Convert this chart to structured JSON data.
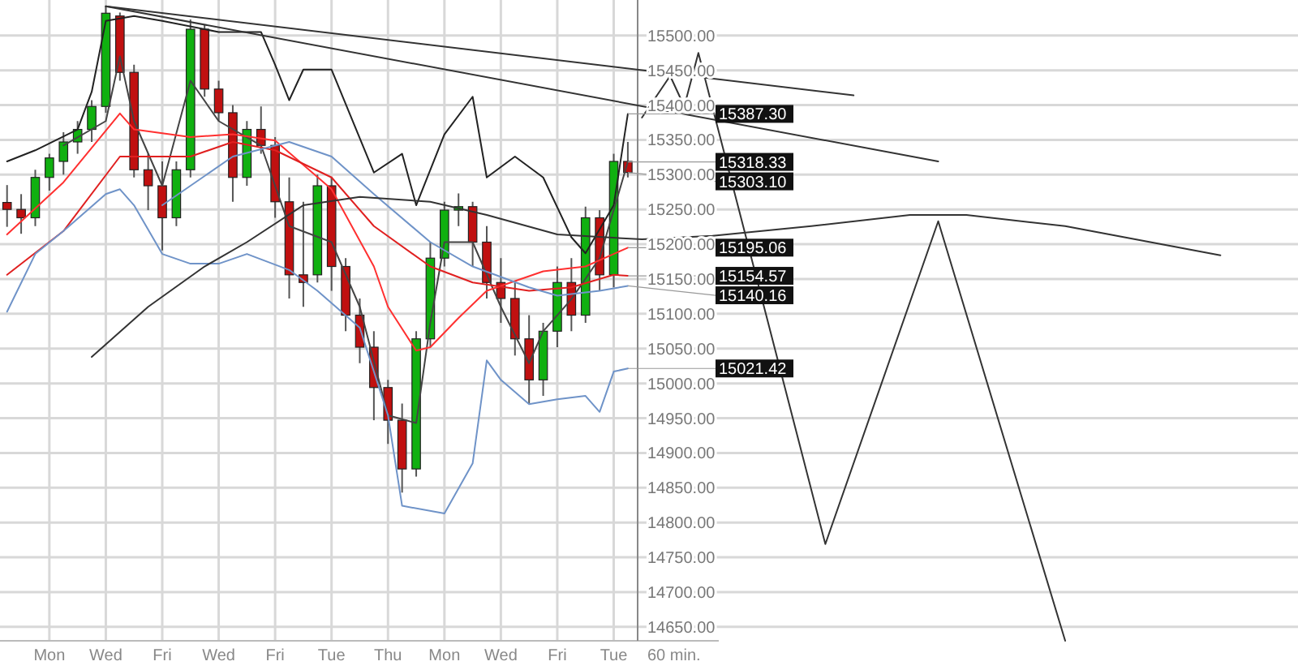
{
  "chart_data": {
    "type": "candlestick",
    "categories": [
      null,
      null,
      null,
      "Mon",
      null,
      null,
      null,
      "Wed",
      null,
      null,
      null,
      "Fri",
      null,
      null,
      null,
      "Wed",
      null,
      null,
      null,
      "Fri",
      null,
      null,
      null,
      "Tue",
      null,
      null,
      null,
      "Thu",
      null,
      null,
      null,
      "Mon",
      null,
      null,
      null,
      "Wed",
      null,
      null,
      null,
      "Fri",
      null,
      null,
      null,
      "Tue",
      null,
      null,
      null,
      null,
      null,
      null,
      null,
      null,
      null,
      null,
      null,
      null,
      null,
      null,
      null,
      null,
      null,
      null,
      null,
      null,
      null,
      null,
      null,
      null,
      null,
      null,
      null,
      null,
      null,
      null,
      null,
      null,
      null,
      null,
      null,
      null,
      null,
      null,
      null,
      null,
      null,
      null,
      null,
      null,
      null,
      null,
      null,
      null
    ],
    "ohlc": [
      [
        15260,
        15285,
        15225,
        15250
      ],
      [
        15250,
        15272,
        15215,
        15238
      ],
      [
        15238,
        15307,
        15226,
        15296
      ],
      [
        15296,
        15330,
        15277,
        15324
      ],
      [
        15319,
        15361,
        15300,
        15347
      ],
      [
        15347,
        15377,
        15330,
        15365
      ],
      [
        15365,
        15407,
        15347,
        15398
      ],
      [
        15398,
        15542,
        15389,
        15532
      ],
      [
        15528,
        15533,
        15435,
        15447
      ],
      [
        15447,
        15458,
        15296,
        15307
      ],
      [
        15307,
        15330,
        15249,
        15284
      ],
      [
        15284,
        15319,
        15191,
        15238
      ],
      [
        15238,
        15319,
        15226,
        15307
      ],
      [
        15307,
        15523,
        15296,
        15509
      ],
      [
        15509,
        15516,
        15412,
        15423
      ],
      [
        15423,
        15435,
        15377,
        15389
      ],
      [
        15389,
        15400,
        15261,
        15296
      ],
      [
        15296,
        15377,
        15284,
        15365
      ],
      [
        15365,
        15398,
        15330,
        15342
      ],
      [
        15342,
        15354,
        15238,
        15261
      ],
      [
        15261,
        15296,
        15122,
        15156
      ],
      [
        15156,
        15261,
        15110,
        15145
      ],
      [
        15156,
        15300,
        15145,
        15284
      ],
      [
        15284,
        15296,
        15133,
        15168
      ],
      [
        15168,
        15180,
        15075,
        15098
      ],
      [
        15098,
        15122,
        15029,
        15052
      ],
      [
        15052,
        15075,
        14947,
        14994
      ],
      [
        14994,
        15005,
        14913,
        14947
      ],
      [
        14947,
        14971,
        14843,
        14877
      ],
      [
        14877,
        15075,
        14866,
        15064
      ],
      [
        15064,
        15203,
        15052,
        15180
      ],
      [
        15180,
        15261,
        15168,
        15249
      ],
      [
        15249,
        15273,
        15226,
        15254
      ],
      [
        15254,
        15261,
        15168,
        15203
      ],
      [
        15203,
        15226,
        15122,
        15145
      ],
      [
        15145,
        15180,
        15087,
        15122
      ],
      [
        15122,
        15145,
        15040,
        15064
      ],
      [
        15064,
        15098,
        14971,
        15005
      ],
      [
        15005,
        15087,
        14982,
        15075
      ],
      [
        15075,
        15168,
        15052,
        15145
      ],
      [
        15145,
        15180,
        15075,
        15098
      ],
      [
        15098,
        15254,
        15087,
        15238
      ],
      [
        15238,
        15249,
        15133,
        15156
      ],
      [
        15156,
        15330,
        15138,
        15319
      ],
      [
        15319,
        15347,
        15296,
        15303.1
      ],
      null,
      null,
      null,
      null,
      null,
      null,
      null,
      null,
      null,
      null,
      null,
      null,
      null,
      null,
      null,
      null,
      null,
      null,
      null,
      null,
      null,
      null,
      null,
      null,
      null,
      null,
      null,
      null,
      null,
      null,
      null,
      null,
      null,
      null,
      null,
      null,
      null,
      null,
      null,
      null,
      null,
      null,
      null,
      null,
      null,
      null,
      null
    ],
    "value_labels": [
      null,
      null,
      null,
      null,
      null,
      null,
      null,
      null,
      null,
      null,
      null,
      null,
      null,
      null,
      null,
      null,
      null,
      null,
      null,
      null,
      null,
      null,
      null,
      null,
      null,
      null,
      null,
      null,
      null,
      null,
      null,
      null,
      null,
      null,
      null,
      null,
      null,
      null,
      null,
      null,
      null,
      null,
      null,
      null,
      "15303.10",
      null,
      null,
      null,
      null,
      null,
      null,
      null,
      null,
      null,
      null,
      null,
      null,
      null,
      null,
      null,
      null,
      null,
      null,
      null,
      null,
      null,
      null,
      null,
      null,
      null,
      null,
      null,
      null,
      null,
      null,
      null,
      null,
      null,
      null,
      null,
      null,
      null,
      null,
      null,
      null,
      null,
      null,
      null,
      null,
      null,
      null,
      null
    ],
    "series": [
      {
        "type": "line",
        "color": "#222222",
        "values": [
          15319,
          null,
          15335,
          null,
          null,
          15365,
          15419,
          15521,
          null,
          15528,
          null,
          15521,
          null,
          null,
          null,
          15505,
          null,
          null,
          15505,
          15458,
          15407,
          15451,
          null,
          15451,
          null,
          null,
          15303,
          null,
          15330,
          15256,
          null,
          15358,
          null,
          15412,
          15296,
          null,
          15326,
          null,
          15296,
          null,
          15210,
          15187,
          null,
          15256,
          15387.3,
          null,
          null,
          null,
          null,
          null,
          null,
          null,
          null,
          null,
          null,
          null,
          null,
          null,
          null,
          null,
          null,
          null,
          null,
          null,
          null,
          null,
          null,
          null,
          null,
          null,
          null,
          null,
          null,
          null,
          null,
          null,
          null,
          null,
          null,
          null,
          null,
          null,
          null,
          null,
          null,
          null,
          null,
          null,
          null,
          null,
          null,
          null
        ],
        "value_labels": [
          null,
          null,
          null,
          null,
          null,
          null,
          null,
          null,
          null,
          null,
          null,
          null,
          null,
          null,
          null,
          null,
          null,
          null,
          null,
          null,
          null,
          null,
          null,
          null,
          null,
          null,
          null,
          null,
          null,
          null,
          null,
          null,
          null,
          null,
          null,
          null,
          null,
          null,
          null,
          null,
          null,
          null,
          null,
          null,
          "15387.30",
          null,
          null,
          null,
          null,
          null,
          null,
          null,
          null,
          null,
          null,
          null,
          null,
          null,
          null,
          null,
          null,
          null,
          null,
          null,
          null,
          null,
          null,
          null,
          null,
          null,
          null,
          null,
          null,
          null,
          null,
          null,
          null,
          null,
          null,
          null,
          null,
          null,
          null,
          null,
          null,
          null,
          null,
          null,
          null,
          null,
          null,
          null
        ]
      },
      {
        "type": "line",
        "color": "#444444",
        "values": [
          null,
          null,
          null,
          null,
          15342,
          null,
          null,
          15377,
          15470,
          15377,
          null,
          15284,
          null,
          15435,
          null,
          15377,
          null,
          null,
          15342,
          null,
          15226,
          null,
          null,
          15203,
          null,
          15110,
          null,
          14954,
          null,
          14943,
          15087,
          15203,
          null,
          15203,
          null,
          15110,
          null,
          15029,
          15075,
          null,
          15121,
          null,
          15180,
          null,
          15318.33,
          null,
          null,
          null,
          null,
          null,
          null,
          null,
          null,
          null,
          null,
          null,
          null,
          null,
          null,
          null,
          null,
          null,
          null,
          null,
          null,
          null,
          null,
          null,
          null,
          null,
          null,
          null,
          null,
          null,
          null,
          null,
          null,
          null,
          null,
          null,
          null,
          null,
          null,
          null,
          null,
          null,
          null,
          null,
          null,
          null,
          null,
          null
        ],
        "value_labels": [
          null,
          null,
          null,
          null,
          null,
          null,
          null,
          null,
          null,
          null,
          null,
          null,
          null,
          null,
          null,
          null,
          null,
          null,
          null,
          null,
          null,
          null,
          null,
          null,
          null,
          null,
          null,
          null,
          null,
          null,
          null,
          null,
          null,
          null,
          null,
          null,
          null,
          null,
          null,
          null,
          null,
          null,
          null,
          null,
          "15318.33",
          null,
          null,
          null,
          null,
          null,
          null,
          null,
          null,
          null,
          null,
          null,
          null,
          null,
          null,
          null,
          null,
          null,
          null,
          null,
          null,
          null,
          null,
          null,
          null,
          null,
          null,
          null,
          null,
          null,
          null,
          null,
          null,
          null,
          null,
          null,
          null,
          null,
          null,
          null,
          null,
          null,
          null,
          null,
          null,
          null,
          null,
          null
        ]
      },
      {
        "type": "line",
        "color": "#ff3030",
        "values": [
          15214,
          null,
          null,
          null,
          15289,
          null,
          null,
          null,
          15388,
          15365,
          null,
          null,
          null,
          15354,
          null,
          null,
          15358,
          null,
          null,
          15349,
          null,
          null,
          null,
          15279,
          null,
          null,
          15168,
          15110,
          null,
          15047,
          15052,
          null,
          15094,
          null,
          15133,
          null,
          null,
          null,
          15161,
          null,
          null,
          15168,
          null,
          null,
          15195.06,
          null,
          null,
          null,
          null,
          null,
          null,
          null,
          null,
          null,
          null,
          null,
          null,
          null,
          null,
          null,
          null,
          null,
          null,
          null,
          null,
          null,
          null,
          null,
          null,
          null,
          null,
          null,
          null,
          null,
          null,
          null,
          null,
          null,
          null,
          null,
          null,
          null,
          null,
          null,
          null,
          null,
          null,
          null,
          null,
          null,
          null,
          null
        ],
        "value_labels": [
          null,
          null,
          null,
          null,
          null,
          null,
          null,
          null,
          null,
          null,
          null,
          null,
          null,
          null,
          null,
          null,
          null,
          null,
          null,
          null,
          null,
          null,
          null,
          null,
          null,
          null,
          null,
          null,
          null,
          null,
          null,
          null,
          null,
          null,
          null,
          null,
          null,
          null,
          null,
          null,
          null,
          null,
          null,
          null,
          "15195.06",
          null,
          null,
          null,
          null,
          null,
          null,
          null,
          null,
          null,
          null,
          null,
          null,
          null,
          null,
          null,
          null,
          null,
          null,
          null,
          null,
          null,
          null,
          null,
          null,
          null,
          null,
          null,
          null,
          null,
          null,
          null,
          null,
          null,
          null,
          null,
          null,
          null,
          null,
          null,
          null,
          null,
          null,
          null,
          null,
          null,
          null,
          null
        ]
      },
      {
        "type": "line",
        "color": "#e02020",
        "values": [
          15156,
          null,
          null,
          null,
          15219,
          null,
          null,
          null,
          15326,
          null,
          null,
          null,
          null,
          15326,
          null,
          null,
          15347,
          null,
          null,
          15335,
          null,
          null,
          null,
          15296,
          null,
          null,
          15226,
          null,
          null,
          null,
          15168,
          null,
          null,
          15145,
          null,
          null,
          null,
          15133,
          null,
          null,
          15138,
          null,
          null,
          15156,
          15154.57,
          null,
          null,
          null,
          null,
          null,
          null,
          null,
          null,
          null,
          null,
          null,
          null,
          null,
          null,
          null,
          null,
          null,
          null,
          null,
          null,
          null,
          null,
          null,
          null,
          null,
          null,
          null,
          null,
          null,
          null,
          null,
          null,
          null,
          null,
          null,
          null,
          null,
          null,
          null,
          null,
          null,
          null,
          null,
          null,
          null,
          null,
          null
        ],
        "value_labels": [
          null,
          null,
          null,
          null,
          null,
          null,
          null,
          null,
          null,
          null,
          null,
          null,
          null,
          null,
          null,
          null,
          null,
          null,
          null,
          null,
          null,
          null,
          null,
          null,
          null,
          null,
          null,
          null,
          null,
          null,
          null,
          null,
          null,
          null,
          null,
          null,
          null,
          null,
          null,
          null,
          null,
          null,
          null,
          null,
          "15154.57",
          null,
          null,
          null,
          null,
          null,
          null,
          null,
          null,
          null,
          null,
          null,
          null,
          null,
          null,
          null,
          null,
          null,
          null,
          null,
          null,
          null,
          null,
          null,
          null,
          null,
          null,
          null,
          null,
          null,
          null,
          null,
          null,
          null,
          null,
          null,
          null,
          null,
          null,
          null,
          null,
          null,
          null,
          null,
          null,
          null,
          null,
          null
        ]
      },
      {
        "type": "line",
        "color": "#6f93c8",
        "values": [
          null,
          null,
          null,
          null,
          null,
          null,
          null,
          null,
          null,
          null,
          null,
          15256,
          null,
          null,
          null,
          null,
          15326,
          null,
          null,
          null,
          15347,
          null,
          null,
          15326,
          null,
          null,
          15272,
          null,
          null,
          null,
          15203,
          null,
          null,
          15168,
          null,
          null,
          null,
          15138,
          null,
          15126,
          null,
          null,
          15133,
          null,
          15140.16,
          null,
          null,
          null,
          null,
          null,
          null,
          null,
          null,
          null,
          null,
          null,
          null,
          null,
          null,
          null,
          null,
          null,
          null,
          null,
          null,
          null,
          null,
          null,
          null,
          null,
          null,
          null,
          null,
          null,
          null,
          null,
          null,
          null,
          null,
          null,
          null,
          null,
          null,
          null,
          null,
          null,
          null,
          null,
          null,
          null,
          null,
          null
        ],
        "value_labels": [
          null,
          null,
          null,
          null,
          null,
          null,
          null,
          null,
          null,
          null,
          null,
          null,
          null,
          null,
          null,
          null,
          null,
          null,
          null,
          null,
          null,
          null,
          null,
          null,
          null,
          null,
          null,
          null,
          null,
          null,
          null,
          null,
          null,
          null,
          null,
          null,
          null,
          null,
          null,
          null,
          null,
          null,
          null,
          null,
          "15140.16",
          null,
          null,
          null,
          null,
          null,
          null,
          null,
          null,
          null,
          null,
          null,
          null,
          null,
          null,
          null,
          null,
          null,
          null,
          null,
          null,
          null,
          null,
          null,
          null,
          null,
          null,
          null,
          null,
          null,
          null,
          null,
          null,
          null,
          null,
          null,
          null,
          null,
          null,
          null,
          null,
          null,
          null,
          null,
          null,
          null,
          null,
          null
        ]
      },
      {
        "type": "line",
        "color": "#6f93c8",
        "values": [
          15103,
          null,
          15186,
          null,
          15219,
          null,
          null,
          15272,
          15279,
          15256,
          null,
          15186,
          null,
          15172,
          null,
          15172,
          null,
          15186,
          null,
          null,
          15163,
          null,
          15133,
          null,
          null,
          15080,
          null,
          14954,
          14824,
          null,
          null,
          14813,
          null,
          14885,
          15033,
          15005,
          null,
          14970,
          null,
          14977,
          null,
          14982,
          14959,
          15017,
          15021.42,
          null,
          null,
          null,
          null,
          null,
          null,
          null,
          null,
          null,
          null,
          null,
          null,
          null,
          null,
          null,
          null,
          null,
          null,
          null,
          null,
          null,
          null,
          null,
          null,
          null,
          null,
          null,
          null,
          null,
          null,
          null,
          null,
          null,
          null,
          null,
          null,
          null,
          null,
          null,
          null,
          null,
          null,
          null,
          null,
          null,
          null,
          null
        ],
        "value_labels": [
          null,
          null,
          null,
          null,
          null,
          null,
          null,
          null,
          null,
          null,
          null,
          null,
          null,
          null,
          null,
          null,
          null,
          null,
          null,
          null,
          null,
          null,
          null,
          null,
          null,
          null,
          null,
          null,
          null,
          null,
          null,
          null,
          null,
          null,
          null,
          null,
          null,
          null,
          null,
          null,
          null,
          null,
          null,
          null,
          "15021.42",
          null,
          null,
          null,
          null,
          null,
          null,
          null,
          null,
          null,
          null,
          null,
          null,
          null,
          null,
          null,
          null,
          null,
          null,
          null,
          null,
          null,
          null,
          null,
          null,
          null,
          null,
          null,
          null,
          null,
          null,
          null,
          null,
          null,
          null,
          null,
          null,
          null,
          null,
          null,
          null,
          null,
          null,
          null,
          null,
          null,
          null,
          null
        ]
      },
      {
        "type": "line",
        "color": "#333333",
        "values": [
          null,
          null,
          null,
          null,
          null,
          null,
          15038,
          null,
          null,
          null,
          15110,
          null,
          null,
          null,
          15168,
          null,
          null,
          15203,
          null,
          null,
          null,
          15256,
          null,
          null,
          null,
          15268,
          null,
          null,
          null,
          null,
          15261,
          null,
          null,
          null,
          15242,
          null,
          null,
          null,
          null,
          15214,
          null,
          null,
          null,
          null,
          null,
          15207,
          null,
          null,
          null,
          null,
          15212,
          null,
          null,
          null,
          null,
          null,
          null,
          15226,
          null,
          null,
          null,
          null,
          null,
          null,
          15242,
          null,
          null,
          null,
          15242,
          null,
          null,
          null,
          null,
          null,
          null,
          15226,
          null,
          null,
          null,
          null,
          null,
          null,
          null,
          null,
          null,
          null,
          15184,
          null,
          null,
          null,
          null,
          null
        ]
      },
      {
        "type": "line",
        "color": "#333333",
        "values": [
          null,
          null,
          null,
          null,
          null,
          null,
          null,
          15542,
          null,
          null,
          null,
          null,
          null,
          null,
          null,
          null,
          null,
          null,
          null,
          null,
          null,
          null,
          null,
          null,
          null,
          null,
          null,
          null,
          null,
          null,
          null,
          null,
          null,
          null,
          null,
          null,
          null,
          null,
          null,
          null,
          null,
          null,
          null,
          null,
          null,
          null,
          null,
          null,
          null,
          null,
          null,
          null,
          null,
          null,
          null,
          null,
          null,
          null,
          null,
          null,
          15414,
          null,
          null,
          null,
          null,
          null,
          null,
          null,
          null,
          null,
          null,
          null,
          null,
          null,
          null,
          null,
          null,
          null,
          null,
          null,
          null,
          null,
          null,
          null,
          null,
          null,
          null,
          null,
          null,
          null,
          null,
          null
        ]
      },
      {
        "type": "line",
        "color": "#333333",
        "values": [
          null,
          null,
          null,
          null,
          null,
          null,
          null,
          15542,
          null,
          null,
          null,
          null,
          null,
          null,
          null,
          null,
          null,
          null,
          null,
          null,
          null,
          null,
          null,
          null,
          null,
          null,
          null,
          null,
          null,
          null,
          null,
          null,
          null,
          null,
          null,
          null,
          null,
          null,
          null,
          null,
          null,
          null,
          null,
          null,
          null,
          null,
          null,
          null,
          null,
          null,
          null,
          null,
          null,
          null,
          null,
          null,
          null,
          null,
          null,
          null,
          null,
          null,
          null,
          null,
          null,
          null,
          15319,
          null,
          null,
          null,
          null,
          null,
          null,
          null,
          null,
          null,
          null,
          null,
          null,
          null,
          null,
          null,
          null,
          null,
          null,
          null,
          null,
          null,
          null,
          null,
          null,
          null
        ]
      },
      {
        "type": "line",
        "color": "#333333",
        "values": [
          null,
          null,
          null,
          null,
          null,
          null,
          null,
          null,
          null,
          null,
          null,
          null,
          null,
          null,
          null,
          null,
          null,
          null,
          null,
          null,
          null,
          null,
          null,
          null,
          null,
          null,
          null,
          null,
          null,
          null,
          null,
          null,
          null,
          null,
          null,
          null,
          null,
          null,
          null,
          null,
          null,
          null,
          null,
          null,
          null,
          15382,
          null,
          15442,
          15398,
          15475,
          null,
          null,
          null,
          null,
          null,
          null,
          null,
          null,
          14769,
          null,
          null,
          null,
          null,
          null,
          null,
          null,
          15233,
          null,
          null,
          null,
          null,
          null,
          null,
          null,
          null,
          14630,
          null,
          null,
          null,
          null,
          null,
          null,
          null,
          null,
          null,
          null,
          null,
          null,
          null,
          null,
          null,
          null
        ]
      }
    ],
    "ylim": [
      14630,
      15551
    ],
    "yticks": [
      {
        "value": 14650,
        "label": "14650.00"
      },
      {
        "value": 14700,
        "label": "14700.00"
      },
      {
        "value": 14750,
        "label": "14750.00"
      },
      {
        "value": 14800,
        "label": "14800.00"
      },
      {
        "value": 14850,
        "label": "14850.00"
      },
      {
        "value": 14900,
        "label": "14900.00"
      },
      {
        "value": 14950,
        "label": "14950.00"
      },
      {
        "value": 15000,
        "label": "15000.00"
      },
      {
        "value": 15050,
        "label": "15050.00"
      },
      {
        "value": 15100,
        "label": "15100.00"
      },
      {
        "value": 15150,
        "label": "15150.00"
      },
      {
        "value": 15200,
        "label": "15200.00"
      },
      {
        "value": 15250,
        "label": "15250.00"
      },
      {
        "value": 15300,
        "label": "15300.00"
      },
      {
        "value": 15350,
        "label": "15350.00"
      },
      {
        "value": 15400,
        "label": "15400.00"
      },
      {
        "value": 15450,
        "label": "15450.00"
      },
      {
        "value": 15500,
        "label": "15500.00"
      }
    ],
    "grid": true,
    "xlabel": "60 min."
  }
}
